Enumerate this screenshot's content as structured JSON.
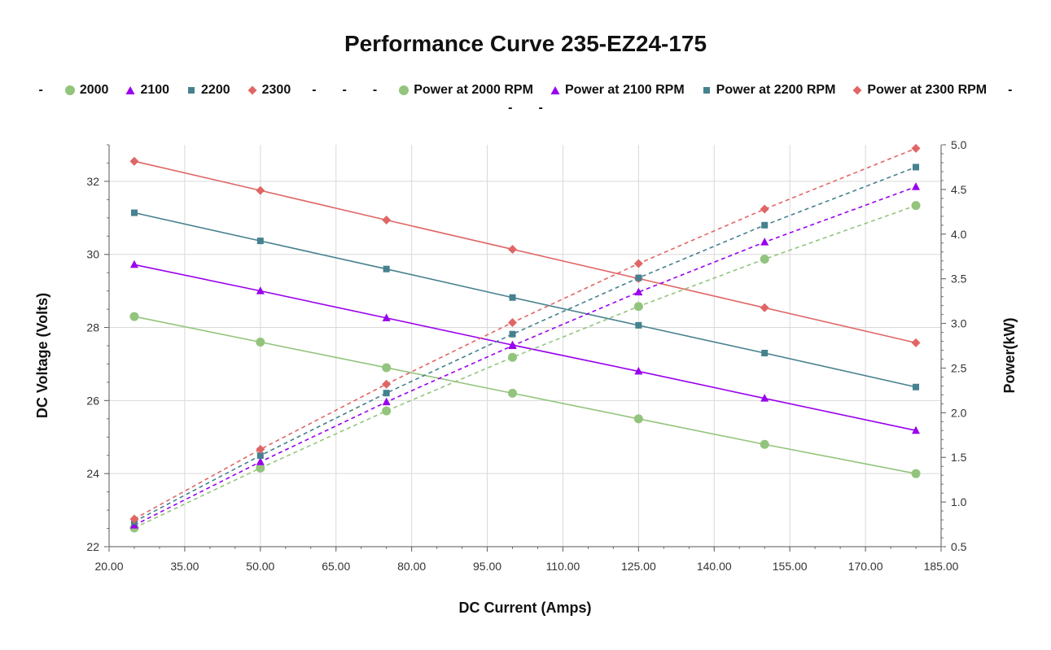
{
  "chart_data": {
    "type": "line",
    "title": "Performance Curve 235-EZ24-175",
    "xlabel": "DC Current (Amps)",
    "ylabel": "DC Voltage (Volts)",
    "y2label": "Power(kW)",
    "xlim": [
      20,
      185
    ],
    "ylim": [
      22,
      33
    ],
    "y2lim": [
      0.5,
      5.0
    ],
    "xticks": [
      "20.00",
      "35.00",
      "50.00",
      "65.00",
      "80.00",
      "95.00",
      "110.00",
      "125.00",
      "140.00",
      "155.00",
      "170.00",
      "185.00"
    ],
    "yticks": [
      "22",
      "24",
      "26",
      "28",
      "30",
      "32"
    ],
    "y2ticks": [
      "0.5",
      "1.0",
      "1.5",
      "2.0",
      "2.5",
      "3.0",
      "3.5",
      "4.0",
      "4.5",
      "5.0"
    ],
    "grid": true,
    "legend_position": "top",
    "x": [
      25,
      50,
      75,
      100,
      125,
      150,
      180
    ],
    "series": [
      {
        "name": "2000",
        "axis": "left",
        "marker": "circle",
        "color": "#93c47d",
        "dashed": false,
        "values": [
          28.3,
          27.6,
          26.9,
          26.2,
          25.5,
          24.8,
          24.0
        ]
      },
      {
        "name": "2100",
        "axis": "left",
        "marker": "triangle",
        "color": "#9900ee",
        "dashed": false,
        "values": [
          29.72,
          29.0,
          28.26,
          27.52,
          26.8,
          26.06,
          25.18
        ]
      },
      {
        "name": "2200",
        "axis": "left",
        "marker": "square",
        "color": "#45818e",
        "dashed": false,
        "values": [
          31.14,
          30.37,
          29.6,
          28.82,
          28.06,
          27.3,
          26.37
        ]
      },
      {
        "name": "2300",
        "axis": "left",
        "marker": "diamond",
        "color": "#e06666",
        "dashed": false,
        "values": [
          32.55,
          31.75,
          30.94,
          30.14,
          29.34,
          28.54,
          27.58
        ]
      },
      {
        "name": "Power at 2000 RPM",
        "axis": "right",
        "marker": "circle",
        "color": "#93c47d",
        "dashed": true,
        "values": [
          0.71,
          1.38,
          2.02,
          2.62,
          3.19,
          3.72,
          4.32
        ]
      },
      {
        "name": "Power at 2100 RPM",
        "axis": "right",
        "marker": "triangle",
        "color": "#9900ee",
        "dashed": true,
        "values": [
          0.74,
          1.45,
          2.12,
          2.75,
          3.35,
          3.91,
          4.53
        ]
      },
      {
        "name": "Power at 2200 RPM",
        "axis": "right",
        "marker": "square",
        "color": "#45818e",
        "dashed": true,
        "values": [
          0.78,
          1.52,
          2.22,
          2.88,
          3.51,
          4.1,
          4.75
        ]
      },
      {
        "name": "Power at 2300 RPM",
        "axis": "right",
        "marker": "diamond",
        "color": "#e06666",
        "dashed": true,
        "values": [
          0.81,
          1.59,
          2.32,
          3.01,
          3.67,
          4.28,
          4.96
        ]
      }
    ]
  },
  "legend": {
    "dash": "-",
    "row2_dashes": [
      "-",
      "-"
    ]
  }
}
